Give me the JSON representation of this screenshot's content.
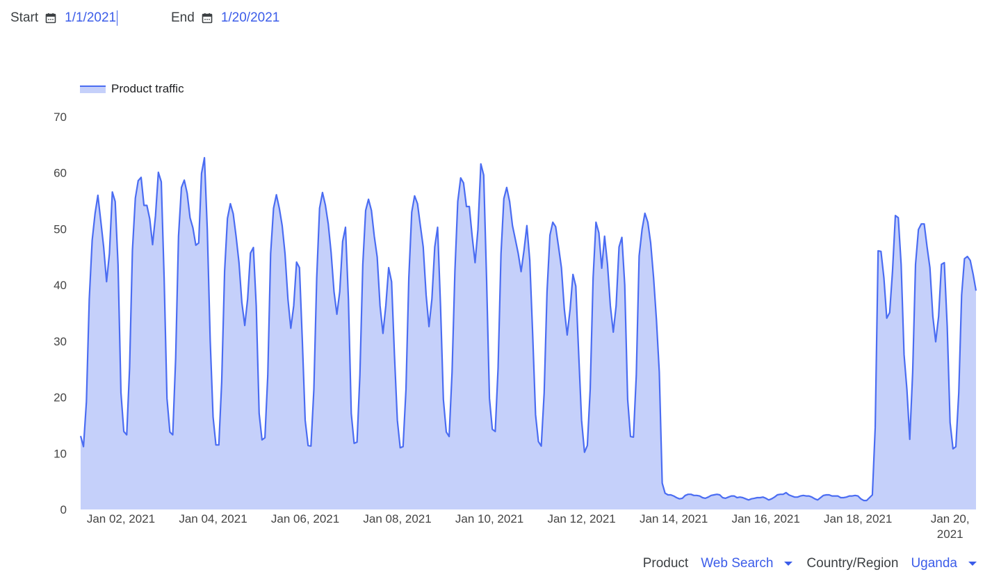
{
  "header": {
    "start_label": "Start",
    "start_value": "1/1/2021",
    "end_label": "End",
    "end_value": "1/20/2021"
  },
  "filters": {
    "product_label": "Product",
    "product_value": "Web Search",
    "region_label": "Country/Region",
    "region_value": "Uganda"
  },
  "colors": {
    "line": "#4a6cf2",
    "fill": "#c5d0fa",
    "accent": "#3b5ce9"
  },
  "icons": {
    "date": "calendar-icon",
    "dropdown": "triangle-down-icon"
  },
  "chart_data": {
    "type": "area",
    "title": "",
    "xlabel": "",
    "ylabel": "",
    "legend": {
      "position": "top-left",
      "entries": [
        "Product traffic"
      ]
    },
    "grid": false,
    "xlim": [
      "2021-01-01T03:00",
      "2021-01-20T13:30"
    ],
    "ylim": [
      0,
      70
    ],
    "yticks": [
      0,
      10,
      20,
      30,
      40,
      50,
      60,
      70
    ],
    "xticks": [
      {
        "date": "2021-01-02T00:00",
        "label": "Jan 02, 2021"
      },
      {
        "date": "2021-01-04T00:00",
        "label": "Jan 04, 2021"
      },
      {
        "date": "2021-01-06T00:00",
        "label": "Jan 06, 2021"
      },
      {
        "date": "2021-01-08T00:00",
        "label": "Jan 08, 2021"
      },
      {
        "date": "2021-01-10T00:00",
        "label": "Jan 10, 2021"
      },
      {
        "date": "2021-01-12T00:00",
        "label": "Jan 12, 2021"
      },
      {
        "date": "2021-01-14T00:00",
        "label": "Jan 14, 2021"
      },
      {
        "date": "2021-01-16T00:00",
        "label": "Jan 16, 2021"
      },
      {
        "date": "2021-01-18T00:00",
        "label": "Jan 18, 2021"
      },
      {
        "date": "2021-01-20T00:00",
        "label": "Jan 20, 2021"
      }
    ],
    "series": [
      {
        "name": "Product traffic",
        "values": [
          13.1,
          11.2,
          19.2,
          37.5,
          48,
          52.7,
          56,
          51.4,
          46.8,
          40.6,
          45.6,
          56.6,
          54.9,
          43.7,
          20.8,
          13.9,
          13.3,
          25.2,
          46.2,
          55.5,
          58.6,
          59.2,
          54.2,
          54.2,
          51.8,
          47.2,
          52.4,
          60.1,
          58.4,
          41.3,
          19.8,
          13.8,
          13.3,
          27,
          48.7,
          57.4,
          58.7,
          56.4,
          52,
          50.2,
          47.1,
          47.5,
          59.9,
          62.7,
          49.9,
          30.1,
          16.5,
          11.5,
          11.5,
          22.7,
          42.5,
          51.9,
          54.5,
          52.7,
          48.7,
          44,
          36.9,
          32.8,
          37.5,
          45.7,
          46.7,
          36.3,
          17.1,
          12.4,
          12.8,
          23.9,
          45.6,
          53.7,
          56.1,
          53.7,
          50.6,
          45.6,
          37.5,
          32.3,
          36.3,
          44.1,
          43.1,
          30.1,
          15.9,
          11.4,
          11.3,
          21.4,
          41.3,
          53.7,
          56.5,
          54.3,
          50.9,
          45.8,
          38.8,
          34.8,
          38.8,
          47.8,
          50.3,
          37.5,
          17.1,
          11.8,
          12,
          23.9,
          43.7,
          53.3,
          55.3,
          53.3,
          48.7,
          45,
          36.3,
          31.4,
          36.3,
          43.1,
          40.6,
          27.6,
          15.9,
          11,
          11.2,
          21.4,
          41.3,
          53,
          55.9,
          54.5,
          50.6,
          46.8,
          38.2,
          32.6,
          37.5,
          46.8,
          50.3,
          36.3,
          19.6,
          13.8,
          13,
          24.5,
          42.5,
          54.9,
          59.1,
          58.2,
          54,
          54,
          48.7,
          44,
          49.9,
          61.6,
          59.6,
          41.3,
          19.8,
          14.3,
          13.9,
          25.2,
          45.6,
          55.4,
          57.4,
          54.9,
          50.6,
          48.1,
          45.6,
          42.4,
          46.2,
          50.6,
          44.4,
          31.4,
          16.9,
          12.1,
          11.3,
          20.8,
          38.8,
          48.9,
          51.2,
          50.4,
          46.8,
          43.1,
          35.7,
          31.1,
          35.7,
          41.9,
          39.8,
          27.6,
          15.9,
          10.2,
          11.4,
          21.4,
          41.3,
          51.2,
          49.3,
          43,
          48.7,
          43.7,
          36.3,
          31.6,
          36.3,
          46.8,
          48.5,
          40,
          19.6,
          13,
          12.9,
          23.9,
          45.2,
          49.9,
          52.8,
          51.2,
          47.5,
          41.3,
          33.8,
          24.5,
          4.7,
          2.9,
          2.6,
          2.6,
          2.4,
          2.1,
          1.9,
          2,
          2.5,
          2.7,
          2.7,
          2.5,
          2.5,
          2.4,
          2.1,
          2,
          2.2,
          2.5,
          2.6,
          2.7,
          2.6,
          2.1,
          2,
          2.2,
          2.4,
          2.4,
          2.1,
          2.2,
          2.1,
          1.9,
          1.7,
          1.9,
          2,
          2.1,
          2.1,
          2.2,
          2,
          1.7,
          1.9,
          2.2,
          2.6,
          2.7,
          2.7,
          3,
          2.6,
          2.4,
          2.2,
          2.2,
          2.4,
          2.5,
          2.4,
          2.4,
          2.2,
          1.9,
          1.7,
          2.1,
          2.5,
          2.6,
          2.6,
          2.4,
          2.4,
          2.4,
          2.1,
          2.1,
          2.2,
          2.4,
          2.4,
          2.5,
          2.4,
          1.9,
          1.6,
          1.6,
          2.1,
          2.6,
          14.6,
          46.1,
          46,
          41.3,
          34.1,
          35.1,
          42.5,
          52.4,
          52,
          43.7,
          27.6,
          21.4,
          12.5,
          24.5,
          43.7,
          49.9,
          50.9,
          50.9,
          46.8,
          43.1,
          34.4,
          29.9,
          34.4,
          43.7,
          44,
          32.6,
          15.5,
          10.8,
          11.2,
          20.8,
          38.2,
          44.7,
          45.1,
          44.4,
          41.9,
          39
        ]
      }
    ]
  }
}
